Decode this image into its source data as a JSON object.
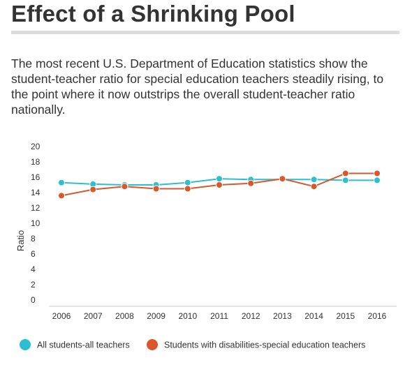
{
  "header": {
    "title": "Effect of a Shrinking Pool",
    "subtitle": "The most recent U.S. Department of Education statistics show the student-teacher ratio for special education teachers steadily rising, to the point where it now outstrips the overall student-teacher ratio nationally."
  },
  "chart_data": {
    "type": "line",
    "title": "Effect of a Shrinking Pool",
    "xlabel": "",
    "ylabel": "Ratio",
    "ylim": [
      0,
      20
    ],
    "yticks": [
      "0",
      "2",
      "4",
      "6",
      "8",
      "10",
      "12",
      "14",
      "16",
      "18",
      "20"
    ],
    "categories": [
      "2006",
      "2007",
      "2008",
      "2009",
      "2010",
      "2011",
      "2012",
      "2013",
      "2014",
      "2015",
      "2016"
    ],
    "series": [
      {
        "name": "All students-all teachers",
        "color": "#2bbfcf",
        "values": [
          15.3,
          15.1,
          15.0,
          15.0,
          15.3,
          15.8,
          15.7,
          15.7,
          15.7,
          15.6,
          15.6
        ]
      },
      {
        "name": "Students with disabilities-special education teachers",
        "color": "#d9572b",
        "values": [
          13.6,
          14.4,
          14.8,
          14.5,
          14.5,
          15.0,
          15.2,
          15.8,
          14.8,
          16.5,
          16.5
        ]
      }
    ],
    "legend": "bottom"
  }
}
